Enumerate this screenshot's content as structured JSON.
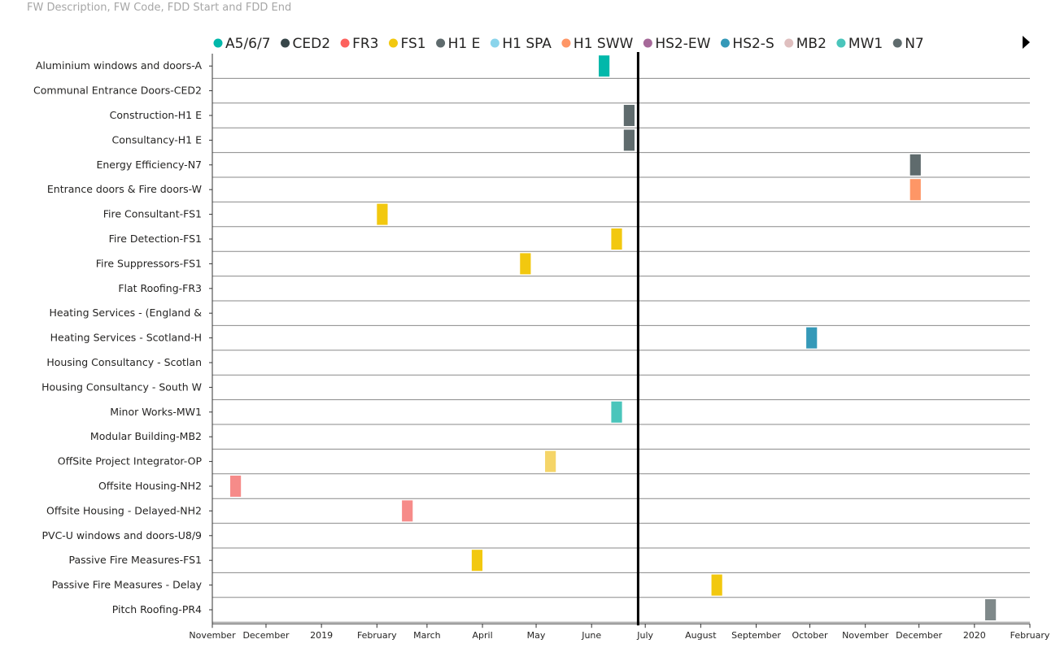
{
  "visual_title": "FW Description, FW Code, FDD Start and FDD End",
  "chart_data": {
    "type": "gantt",
    "legend": [
      {
        "code": "A5/6/7",
        "color": "#01B8AA"
      },
      {
        "code": "CED2",
        "color": "#374649"
      },
      {
        "code": "FR3",
        "color": "#FD625E"
      },
      {
        "code": "FS1",
        "color": "#F2C80F"
      },
      {
        "code": "H1 E",
        "color": "#5F6B6D"
      },
      {
        "code": "H1 SPA",
        "color": "#8AD4EB"
      },
      {
        "code": "H1 SWW",
        "color": "#FE9666"
      },
      {
        "code": "HS2-EW",
        "color": "#A66999"
      },
      {
        "code": "HS2-S",
        "color": "#3599B8"
      },
      {
        "code": "MB2",
        "color": "#DFBFBF"
      },
      {
        "code": "MW1",
        "color": "#4AC5BB"
      },
      {
        "code": "N7",
        "color": "#5F6B6D"
      }
    ],
    "legend_more_icon": "play-triangle-icon",
    "rows": [
      {
        "label": "Aluminium windows and doors-A",
        "start": "2019-06-05",
        "end": "2019-06-11",
        "color": "#01B8AA"
      },
      {
        "label": "Communal Entrance Doors-CED2",
        "start": null,
        "end": null,
        "color": null
      },
      {
        "label": "Construction-H1 E",
        "start": "2019-06-19",
        "end": "2019-06-25",
        "color": "#5F6B6D"
      },
      {
        "label": "Consultancy-H1 E",
        "start": "2019-06-19",
        "end": "2019-06-25",
        "color": "#5F6B6D"
      },
      {
        "label": "Energy Efficiency-N7",
        "start": "2019-11-26",
        "end": "2019-12-02",
        "color": "#5F6B6D"
      },
      {
        "label": "Entrance doors & Fire doors-W",
        "start": "2019-11-26",
        "end": "2019-12-02",
        "color": "#FE9666"
      },
      {
        "label": "Fire Consultant-FS1",
        "start": "2019-02-01",
        "end": "2019-02-07",
        "color": "#F2C80F"
      },
      {
        "label": "Fire Detection-FS1",
        "start": "2019-06-12",
        "end": "2019-06-18",
        "color": "#F2C80F"
      },
      {
        "label": "Fire Suppressors-FS1",
        "start": "2019-04-22",
        "end": "2019-04-28",
        "color": "#F2C80F"
      },
      {
        "label": "Flat Roofing-FR3",
        "start": null,
        "end": null,
        "color": null
      },
      {
        "label": "Heating Services - (England &",
        "start": null,
        "end": null,
        "color": null
      },
      {
        "label": "Heating Services - Scotland-H",
        "start": "2019-09-29",
        "end": "2019-10-05",
        "color": "#3599B8"
      },
      {
        "label": "Housing Consultancy - Scotlan",
        "start": null,
        "end": null,
        "color": null
      },
      {
        "label": "Housing Consultancy - South W",
        "start": null,
        "end": null,
        "color": null
      },
      {
        "label": "Minor Works-MW1",
        "start": "2019-06-12",
        "end": "2019-06-18",
        "color": "#4AC5BB"
      },
      {
        "label": "Modular Building-MB2",
        "start": null,
        "end": null,
        "color": null
      },
      {
        "label": "OffSite Project Integrator-OP",
        "start": "2019-05-06",
        "end": "2019-05-12",
        "color": "#F5D568"
      },
      {
        "label": "Offsite Housing-NH2",
        "start": "2018-11-11",
        "end": "2018-11-17",
        "color": "#F68B89"
      },
      {
        "label": "Offsite Housing - Delayed-NH2",
        "start": "2019-02-15",
        "end": "2019-02-21",
        "color": "#F68B89"
      },
      {
        "label": "PVC-U windows and doors-U8/9",
        "start": null,
        "end": null,
        "color": null
      },
      {
        "label": "Passive Fire Measures-FS1",
        "start": "2019-03-26",
        "end": "2019-04-01",
        "color": "#F2C80F"
      },
      {
        "label": "Passive Fire Measures - Delay",
        "start": "2019-08-07",
        "end": "2019-08-13",
        "color": "#F2C80F"
      },
      {
        "label": "Pitch Roofing-PR4",
        "start": "2020-01-07",
        "end": "2020-01-13",
        "color": "#7F898A"
      }
    ],
    "x_axis": {
      "min": "2018-11-01",
      "max": "2020-02-01",
      "ticks": [
        {
          "date": "2018-11-01",
          "label": "November"
        },
        {
          "date": "2018-12-01",
          "label": "December"
        },
        {
          "date": "2019-01-01",
          "label": "2019"
        },
        {
          "date": "2019-02-01",
          "label": "February"
        },
        {
          "date": "2019-03-01",
          "label": "March"
        },
        {
          "date": "2019-04-01",
          "label": "April"
        },
        {
          "date": "2019-05-01",
          "label": "May"
        },
        {
          "date": "2019-06-01",
          "label": "June"
        },
        {
          "date": "2019-07-01",
          "label": "July"
        },
        {
          "date": "2019-08-01",
          "label": "August"
        },
        {
          "date": "2019-09-01",
          "label": "September"
        },
        {
          "date": "2019-10-01",
          "label": "October"
        },
        {
          "date": "2019-11-01",
          "label": "November"
        },
        {
          "date": "2019-12-01",
          "label": "December"
        },
        {
          "date": "2020-01-01",
          "label": "2020"
        },
        {
          "date": "2020-02-01",
          "label": "February"
        }
      ]
    },
    "today_line_date": "2019-06-27",
    "grid": true,
    "legend_position": "top"
  }
}
